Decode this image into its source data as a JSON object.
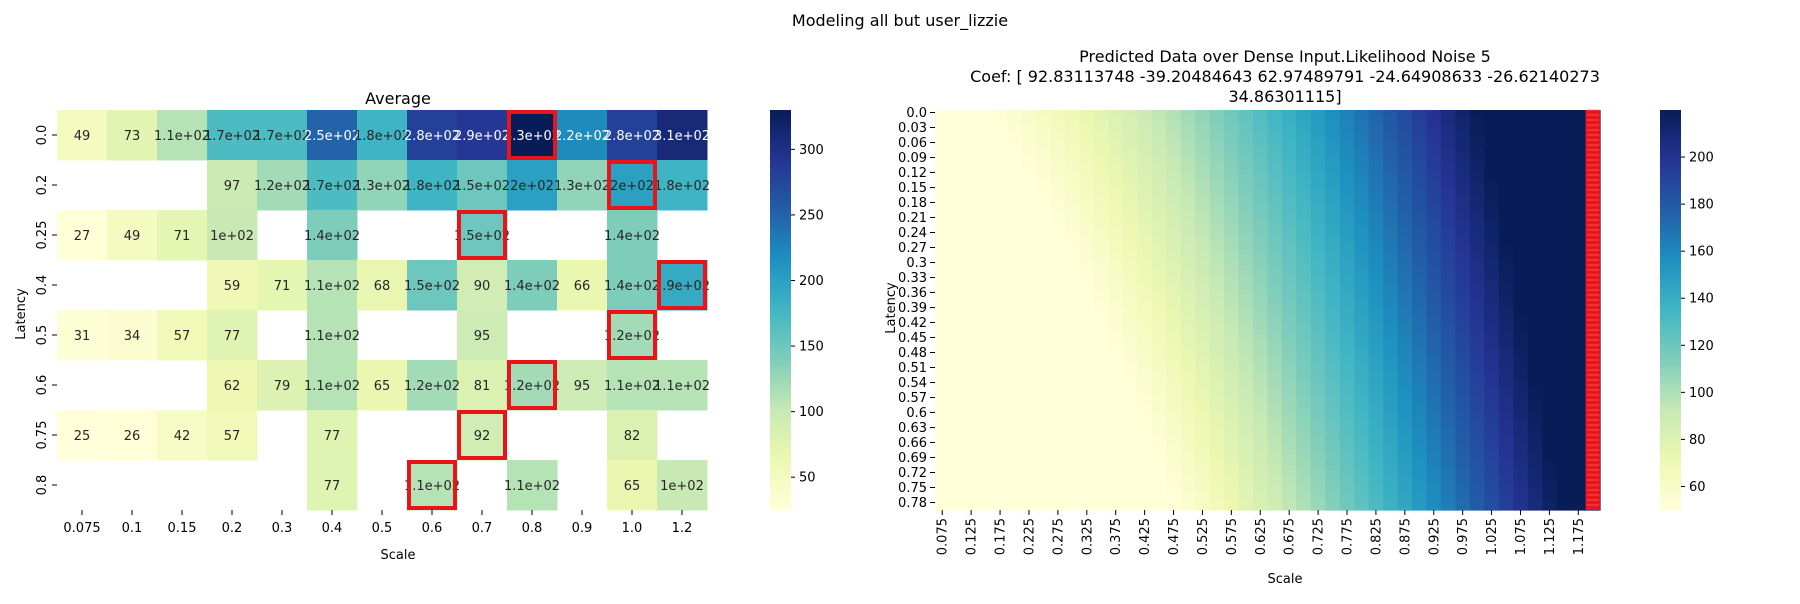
{
  "figure": {
    "suptitle": "Modeling all but user_lizzie"
  },
  "chart_data": [
    {
      "type": "heatmap",
      "title": "Average",
      "xlabel": "Scale",
      "ylabel": "Latency",
      "x_categories": [
        "0.075",
        "0.1",
        "0.15",
        "0.2",
        "0.3",
        "0.4",
        "0.5",
        "0.6",
        "0.7",
        "0.8",
        "0.9",
        "1.0",
        "1.2"
      ],
      "y_categories": [
        "0.0",
        "0.2",
        "0.25",
        "0.4",
        "0.5",
        "0.6",
        "0.75",
        "0.8"
      ],
      "values": [
        [
          49,
          73,
          110,
          170,
          170,
          250,
          180,
          280,
          290,
          330,
          220,
          280,
          310
        ],
        [
          null,
          null,
          null,
          97,
          120,
          170,
          130,
          180,
          150,
          200,
          130,
          200,
          180
        ],
        [
          27,
          49,
          71,
          100,
          null,
          140,
          null,
          null,
          150,
          null,
          null,
          140,
          null
        ],
        [
          null,
          null,
          null,
          59,
          71,
          110,
          68,
          150,
          90,
          140,
          66,
          140,
          190
        ],
        [
          31,
          34,
          57,
          77,
          null,
          110,
          null,
          null,
          95,
          null,
          null,
          120,
          null
        ],
        [
          null,
          null,
          null,
          62,
          79,
          110,
          65,
          120,
          81,
          120,
          95,
          110,
          110
        ],
        [
          25,
          26,
          42,
          57,
          null,
          77,
          null,
          null,
          92,
          null,
          null,
          82,
          null
        ],
        [
          null,
          null,
          null,
          null,
          null,
          77,
          null,
          110,
          null,
          110,
          null,
          65,
          100
        ]
      ],
      "labels": [
        [
          "49",
          "73",
          "1.1e+02",
          "1.7e+02",
          "1.7e+02",
          "2.5e+02",
          "1.8e+02",
          "2.8e+02",
          "2.9e+02",
          "3.3e+02",
          "2.2e+02",
          "2.8e+02",
          "3.1e+02"
        ],
        [
          "",
          "",
          "",
          "97",
          "1.2e+02",
          "1.7e+02",
          "1.3e+02",
          "1.8e+02",
          "1.5e+02",
          "2e+02",
          "1.3e+02",
          "2e+02",
          "1.8e+02"
        ],
        [
          "27",
          "49",
          "71",
          "1e+02",
          "",
          "1.4e+02",
          "",
          "",
          "1.5e+02",
          "",
          "",
          "1.4e+02",
          ""
        ],
        [
          "",
          "",
          "",
          "59",
          "71",
          "1.1e+02",
          "68",
          "1.5e+02",
          "90",
          "1.4e+02",
          "66",
          "1.4e+02",
          "1.9e+02"
        ],
        [
          "31",
          "34",
          "57",
          "77",
          "",
          "1.1e+02",
          "",
          "",
          "95",
          "",
          "",
          "1.2e+02",
          ""
        ],
        [
          "",
          "",
          "",
          "62",
          "79",
          "1.1e+02",
          "65",
          "1.2e+02",
          "81",
          "1.2e+02",
          "95",
          "1.1e+02",
          "1.1e+02"
        ],
        [
          "25",
          "26",
          "42",
          "57",
          "",
          "77",
          "",
          "",
          "92",
          "",
          "",
          "82",
          ""
        ],
        [
          "",
          "",
          "",
          "",
          "",
          "77",
          "",
          "1.1e+02",
          "",
          "1.1e+02",
          "",
          "65",
          "1e+02"
        ]
      ],
      "highlighted_cells": [
        [
          0,
          9
        ],
        [
          1,
          11
        ],
        [
          2,
          8
        ],
        [
          3,
          12
        ],
        [
          4,
          11
        ],
        [
          5,
          9
        ],
        [
          6,
          8
        ],
        [
          7,
          7
        ]
      ],
      "highlight_color": "#e8141a",
      "colormap": "YlGnBu",
      "colorbar": {
        "vmin": 25,
        "vmax": 330,
        "ticks": [
          50,
          100,
          150,
          200,
          250,
          300
        ]
      }
    },
    {
      "type": "heatmap",
      "title_lines": [
        "Predicted Data over Dense Input.Likelihood Noise 5",
        "Coef: [ 92.83113748 -39.20484643  62.97489791 -24.64908633 -26.62140273",
        "34.86301115]"
      ],
      "xlabel": "Scale",
      "ylabel": "Latency",
      "x_tick_labels": [
        "0.075",
        "0.125",
        "0.175",
        "0.225",
        "0.275",
        "0.325",
        "0.375",
        "0.425",
        "0.475",
        "0.525",
        "0.575",
        "0.625",
        "0.675",
        "0.725",
        "0.775",
        "0.825",
        "0.875",
        "0.925",
        "0.975",
        "1.025",
        "1.075",
        "1.125",
        "1.175"
      ],
      "y_tick_labels": [
        "0.0",
        "0.03",
        "0.06",
        "0.09",
        "0.12",
        "0.15",
        "0.18",
        "0.21",
        "0.24",
        "0.27",
        "0.3",
        "0.33",
        "0.36",
        "0.39",
        "0.42",
        "0.45",
        "0.48",
        "0.51",
        "0.54",
        "0.57",
        "0.6",
        "0.63",
        "0.66",
        "0.69",
        "0.72",
        "0.75",
        "0.78"
      ],
      "x_range": [
        0.075,
        1.2
      ],
      "x_step": 0.025,
      "y_range": [
        0.0,
        0.8
      ],
      "y_step": 0.01,
      "highlighted_column": 1.2,
      "highlight_color": "#e8141a",
      "colormap": "YlGnBu",
      "colorbar": {
        "vmin": 50,
        "vmax": 220,
        "ticks": [
          60,
          80,
          100,
          120,
          140,
          160,
          180,
          200
        ]
      }
    }
  ]
}
